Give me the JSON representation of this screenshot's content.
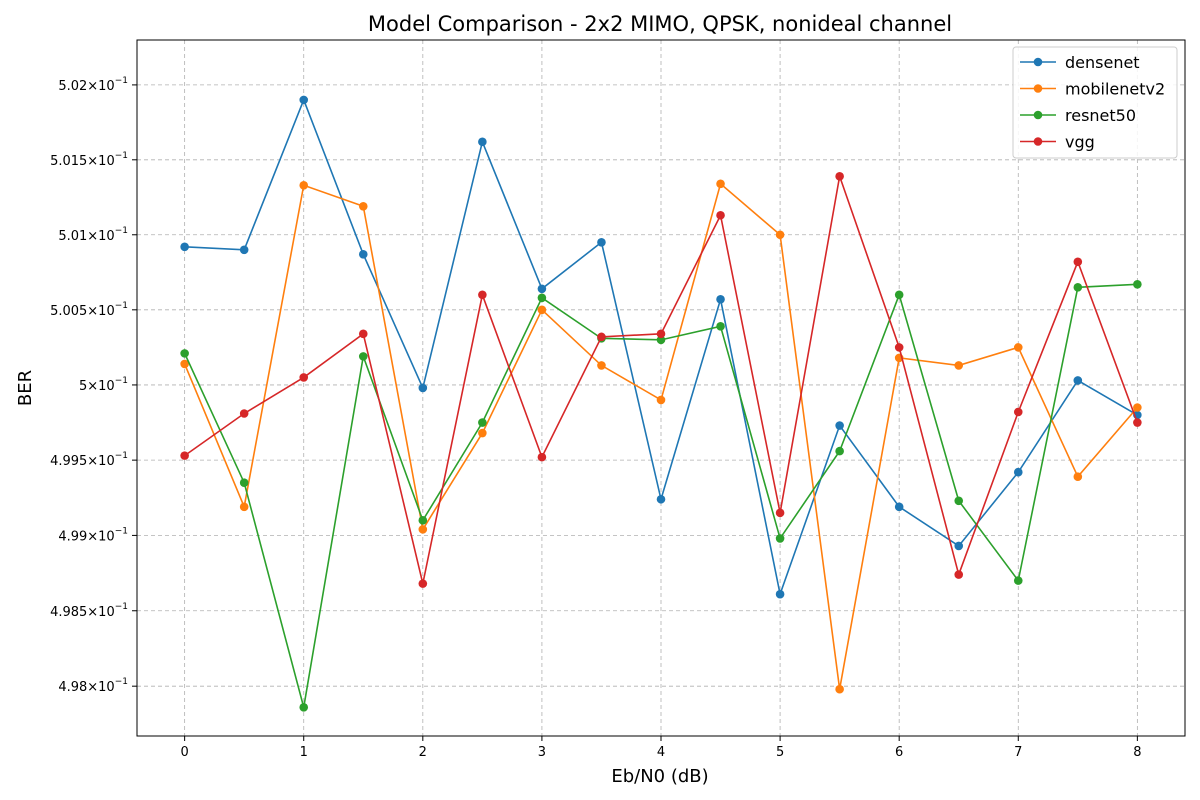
{
  "chart_data": {
    "type": "line",
    "title": "Model Comparison - 2x2 MIMO, QPSK, nonideal channel",
    "xlabel": "Eb/N0 (dB)",
    "ylabel": "BER",
    "x": [
      0,
      0.5,
      1,
      1.5,
      2,
      2.5,
      3,
      3.5,
      4,
      4.5,
      5,
      5.5,
      6,
      6.5,
      7,
      7.5,
      8
    ],
    "xlim": [
      -0.4,
      8.4
    ],
    "ylim": [
      0.49767,
      0.5023
    ],
    "y_scale": "log",
    "x_ticks": [
      0,
      1,
      2,
      3,
      4,
      5,
      6,
      7,
      8
    ],
    "x_tick_labels": [
      "0",
      "1",
      "2",
      "3",
      "4",
      "5",
      "6",
      "7",
      "8"
    ],
    "y_ticks": [
      0.498,
      0.4985,
      0.499,
      0.4995,
      0.5,
      0.5005,
      0.501,
      0.5015,
      0.502
    ],
    "y_tick_mantissas": [
      "4.98",
      "4.985",
      "4.99",
      "4.995",
      "5",
      "5.005",
      "5.01",
      "5.015",
      "5.02"
    ],
    "y_tick_base": "10",
    "y_tick_exponent": "−1",
    "y_tick_times": "×",
    "grid": true,
    "legend_position": "top-right",
    "series": [
      {
        "name": "densenet",
        "color": "#1f77b4",
        "values": [
          0.50092,
          0.5009,
          0.5019,
          0.50087,
          0.49998,
          0.50162,
          0.50064,
          0.50095,
          0.49924,
          0.50057,
          0.49861,
          0.49973,
          0.49919,
          0.49893,
          0.49942,
          0.50003,
          0.4998
        ]
      },
      {
        "name": "mobilenetv2",
        "color": "#ff7f0e",
        "values": [
          0.50014,
          0.49919,
          0.50133,
          0.50119,
          0.49904,
          0.49968,
          0.5005,
          0.50013,
          0.4999,
          0.50134,
          0.501,
          0.49798,
          0.50018,
          0.50013,
          0.50025,
          0.49939,
          0.49985
        ]
      },
      {
        "name": "resnet50",
        "color": "#2ca02c",
        "values": [
          0.50021,
          0.49935,
          0.49786,
          0.50019,
          0.4991,
          0.49975,
          0.50058,
          0.50031,
          0.5003,
          0.50039,
          0.49898,
          0.49956,
          0.5006,
          0.49923,
          0.4987,
          0.50065,
          0.50067
        ]
      },
      {
        "name": "vgg",
        "color": "#d62728",
        "values": [
          0.49953,
          0.49981,
          0.50005,
          0.50034,
          0.49868,
          0.5006,
          0.49952,
          0.50032,
          0.50034,
          0.50113,
          0.49915,
          0.50139,
          0.50025,
          0.49874,
          0.49982,
          0.50082,
          0.49975
        ]
      }
    ]
  }
}
